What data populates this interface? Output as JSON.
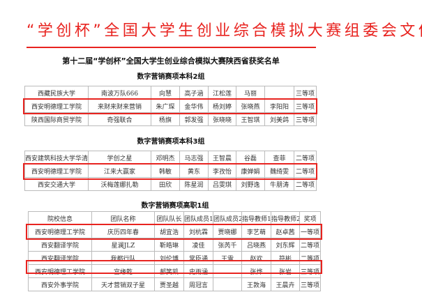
{
  "header": {
    "title": "“学创杯”全国大学生创业综合模拟大赛组委会文件",
    "subtitle": "第十二届“学创杯”全国大学生创业综合模拟大赛陕西省获奖名单"
  },
  "colors": {
    "accent": "#e8231f"
  },
  "sections": [
    {
      "title": "数字营销赛项本科2组",
      "rows": [
        [
          "西藏民族大学",
          "南波万队666",
          "向慧",
          "高子涵",
          "江松莲",
          "马丽",
          "",
          "三等项"
        ],
        [
          "西安明德理工学院",
          "来财来财来营销",
          "朱广琛",
          "金华伟",
          "杨刘婷",
          "张晓燕",
          "李阳阳",
          "三等项"
        ],
        [
          "陕西国际商贸学院",
          "奇强联合",
          "杨旗",
          "郭发强",
          "张晓晓",
          "王智琪",
          "刘美鸽",
          "三等项"
        ]
      ]
    },
    {
      "title": "数字营销赛项本科3组",
      "rows": [
        [
          "西安建筑科技大学华清学院",
          "学创之星",
          "邓明杰",
          "马志强",
          "王智晨",
          "谷磊",
          "查菲",
          "二等项"
        ],
        [
          "西安明德理工学院",
          "江来大赢家",
          "韩敏",
          "黄东",
          "李孜怡",
          "康婵娟",
          "魏绮雯",
          "二等项"
        ],
        [
          "西安交通大学",
          "沃梅莲娜扎勒",
          "田欣",
          "陈星润",
          "吕雯琪",
          "刘野逸",
          "牛朋涛",
          "二等项"
        ]
      ]
    },
    {
      "title": "数字营销赛项高职1组",
      "header": [
        "院校信息",
        "团队名称",
        "团队队长",
        "团队成员1",
        "团队成员2",
        "指导教师1",
        "指导教师2",
        "奖项"
      ],
      "rows": [
        [
          "西安明德理工学院",
          "庆历四年春",
          "胡宜浩",
          "刘杭霖",
          "贾晓娜",
          "李艺萌",
          "赵卓茜",
          "一等项"
        ],
        [
          "西安翻译学院",
          "星澜JLZ",
          "靳皓琳",
          "凌佳",
          "张芮千",
          "吕晓燕",
          "刘东辉",
          "二等项"
        ],
        [
          "西安翻译学院",
          "我都行队",
          "刘伦博",
          "常臣通",
          "王雪",
          "赵欢",
          "符彬",
          "二等项"
        ],
        [
          "西安明德理工学院",
          "宫缘乾",
          "郝笑凯",
          "史雨涵",
          "",
          "张烨",
          "张岩",
          "三等项"
        ],
        [
          "西安外事学院",
          "天才营销双子星",
          "贾圣越",
          "周冠言",
          "",
          "王敦海",
          "王晨卉",
          "三等项"
        ]
      ]
    }
  ]
}
